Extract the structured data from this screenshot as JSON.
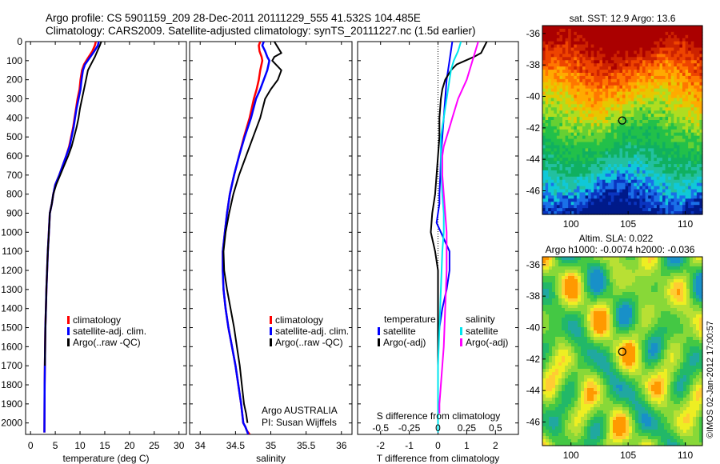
{
  "header": {
    "line1": "Argo profile: CS 5901159_209 28-Dec-2011 20111229_555 41.532S 104.485E",
    "line2": "Climatology: CARS2009. Satellite-adjusted climatology: synTS_20111227.nc (1.5d earlier)"
  },
  "footer_stamp": "©IMOS 02-Jan-2012 17:00:57",
  "colors": {
    "climatology": "#ff0000",
    "satellite": "#0000ff",
    "argo": "#000000",
    "sal_satellite": "#00e5ee",
    "sal_argo": "#ff00ff"
  },
  "chart_data": [
    {
      "id": "temperature",
      "type": "line",
      "xlabel": "temperature (deg C)",
      "xlim": [
        -1,
        31.5
      ],
      "ylim": [
        2060,
        0
      ],
      "yreverse": true,
      "xticks": [
        0,
        5,
        10,
        15,
        20,
        25,
        30
      ],
      "yticks": [
        0,
        100,
        200,
        300,
        400,
        500,
        600,
        700,
        800,
        900,
        1000,
        1100,
        1200,
        1300,
        1400,
        1500,
        1600,
        1700,
        1800,
        1900,
        2000
      ],
      "legend": [
        "climatology",
        "satellite-adj. clim.",
        "Argo(..raw -QC)"
      ],
      "series": [
        {
          "name": "climatology",
          "color": "#ff0000",
          "width": 2.5,
          "x": [
            13.2,
            13.0,
            12.5,
            11.5,
            10.8,
            10.4,
            10.1,
            9.9,
            9.5,
            9.2,
            8.9,
            8.6,
            8.2,
            7.8,
            7.2,
            6.5,
            5.8,
            5.0,
            4.6,
            4.3,
            3.9,
            3.7,
            3.5,
            3.35,
            3.2,
            3.1,
            3.0,
            2.95,
            2.9,
            2.85,
            2.8
          ],
          "y": [
            0,
            20,
            50,
            90,
            120,
            150,
            200,
            250,
            300,
            350,
            400,
            450,
            500,
            550,
            600,
            650,
            700,
            750,
            800,
            850,
            900,
            1000,
            1100,
            1200,
            1300,
            1400,
            1500,
            1600,
            1700,
            1800,
            2050
          ]
        },
        {
          "name": "satellite-adj. clim.",
          "color": "#0000ff",
          "width": 2.5,
          "x": [
            13.8,
            13.6,
            12.9,
            11.8,
            11.0,
            10.6,
            10.3,
            10.1,
            9.7,
            9.3,
            9.0,
            8.7,
            8.3,
            7.9,
            7.2,
            6.5,
            5.8,
            5.0,
            4.6,
            4.3,
            3.9,
            3.7,
            3.5,
            3.35,
            3.2,
            3.1,
            3.0,
            2.95,
            2.9,
            2.85,
            2.8
          ],
          "y": [
            0,
            20,
            50,
            90,
            120,
            150,
            200,
            250,
            300,
            350,
            400,
            450,
            500,
            550,
            600,
            650,
            700,
            750,
            800,
            850,
            900,
            1000,
            1100,
            1200,
            1300,
            1400,
            1500,
            1600,
            1700,
            1800,
            2050
          ]
        },
        {
          "name": "Argo(..raw -QC)",
          "color": "#000000",
          "width": 2,
          "x": [
            14.3,
            14.0,
            13.5,
            13.0,
            12.6,
            11.6,
            11.2,
            10.8,
            10.4,
            10.0,
            9.7,
            9.3,
            8.8,
            8.3,
            7.6,
            6.8,
            6.0,
            5.2,
            4.6,
            4.3,
            3.9,
            3.7,
            3.5,
            3.35,
            3.2,
            3.1,
            3.0,
            2.95,
            2.9
          ],
          "y": [
            0,
            20,
            50,
            80,
            100,
            150,
            200,
            250,
            300,
            350,
            400,
            450,
            500,
            550,
            600,
            650,
            700,
            750,
            800,
            850,
            900,
            1000,
            1100,
            1200,
            1300,
            1400,
            1500,
            1600,
            1700
          ]
        }
      ]
    },
    {
      "id": "salinity",
      "type": "line",
      "xlabel": "salinity",
      "xlim": [
        33.85,
        36.15
      ],
      "ylim": [
        2060,
        0
      ],
      "yreverse": true,
      "xticks": [
        34,
        34.5,
        35,
        35.5,
        36
      ],
      "xticklabels": [
        "34",
        "34.5",
        "35",
        "35.5",
        "36"
      ],
      "legend": [
        "climatology",
        "satellite-adj. clim.",
        "Argo(..raw -QC)"
      ],
      "annotations": [
        "Argo AUSTRALIA",
        "PI: Susan Wijffels"
      ],
      "series": [
        {
          "name": "climatology",
          "color": "#ff0000",
          "width": 2.5,
          "x": [
            34.85,
            34.83,
            34.84,
            34.87,
            34.88,
            34.85,
            34.83,
            34.8,
            34.76,
            34.7,
            34.62,
            34.55,
            34.48,
            34.42,
            34.38,
            34.35,
            34.32,
            34.32,
            34.33,
            34.36,
            34.4,
            34.45,
            34.5,
            34.54,
            34.58,
            34.61,
            34.64,
            34.66,
            34.68,
            34.7
          ],
          "y": [
            0,
            20,
            50,
            80,
            100,
            150,
            200,
            250,
            300,
            400,
            500,
            600,
            700,
            800,
            900,
            1000,
            1100,
            1200,
            1300,
            1400,
            1500,
            1600,
            1700,
            1800,
            1900,
            2000,
            2020,
            2040,
            2050,
            2060
          ]
        },
        {
          "name": "satellite-adj. clim.",
          "color": "#0000ff",
          "width": 2.5,
          "x": [
            34.9,
            34.88,
            34.92,
            34.95,
            34.98,
            34.95,
            34.9,
            34.85,
            34.79,
            34.72,
            34.63,
            34.55,
            34.48,
            34.42,
            34.38,
            34.35,
            34.32,
            34.32,
            34.33,
            34.36,
            34.4,
            34.45,
            34.5,
            34.54,
            34.58,
            34.61,
            34.64,
            34.66,
            34.68
          ],
          "y": [
            0,
            20,
            50,
            80,
            100,
            150,
            200,
            250,
            300,
            400,
            500,
            600,
            700,
            800,
            900,
            1000,
            1100,
            1200,
            1300,
            1400,
            1500,
            1600,
            1700,
            1800,
            1900,
            2000,
            2020,
            2040,
            2060
          ]
        },
        {
          "name": "Argo(..raw -QC)",
          "color": "#000000",
          "width": 2,
          "x": [
            35.05,
            35.1,
            35.15,
            35.05,
            35.02,
            35.15,
            35.1,
            35.0,
            34.92,
            34.85,
            34.75,
            34.65,
            34.55,
            34.47,
            34.41,
            34.36,
            34.33,
            34.34,
            34.38,
            34.43,
            34.48,
            34.52,
            34.56,
            34.59,
            34.62,
            34.65,
            34.67
          ],
          "y": [
            0,
            30,
            60,
            80,
            100,
            150,
            200,
            250,
            300,
            400,
            500,
            600,
            700,
            800,
            900,
            1000,
            1100,
            1200,
            1300,
            1400,
            1500,
            1600,
            1700,
            1800,
            1900,
            1950,
            2000
          ]
        }
      ]
    },
    {
      "id": "difference",
      "type": "line",
      "xlabel": "T difference from climatology",
      "xlabel_top": "S difference from climatology",
      "xlim": [
        -2.8,
        2.8
      ],
      "ylim": [
        2060,
        0
      ],
      "yreverse": true,
      "xticks": [
        -2,
        -1,
        0,
        1,
        2
      ],
      "xticks_top": [
        -0.5,
        -0.25,
        0,
        0.25,
        0.5
      ],
      "xticks_top_labels": [
        "-0.5",
        "-0.25",
        "0",
        "0.25",
        "0.5"
      ],
      "legend": {
        "temperature_title": "temperature",
        "salinity_title": "salinity",
        "items": [
          "satellite",
          "Argo(-adj)",
          "satellite",
          "Argo(-adj)"
        ]
      },
      "series": [
        {
          "name": "temperature satellite",
          "color": "#0000ff",
          "width": 2,
          "x": [
            0.5,
            0.4,
            0.3,
            0.25,
            0.2,
            0.15,
            0.1,
            0.08,
            0.05,
            0.05,
            0.0,
            -0.05,
            0.1,
            0.25,
            0.4,
            0.4,
            0.3,
            0.15,
            0.05,
            0.0,
            0.0,
            0.0,
            0.0,
            0.0,
            0.0
          ],
          "y": [
            0,
            100,
            200,
            300,
            400,
            500,
            600,
            700,
            800,
            850,
            900,
            950,
            1000,
            1050,
            1100,
            1200,
            1300,
            1400,
            1500,
            1600,
            1700,
            1800,
            1900,
            2000,
            2050
          ]
        },
        {
          "name": "temperature Argo(-adj)",
          "color": "#000000",
          "width": 2,
          "x": [
            1.7,
            1.6,
            1.5,
            1.25,
            0.95,
            0.65,
            0.45,
            0.25,
            0.15,
            0.1,
            0.05,
            0.05,
            0.0,
            -0.05,
            -0.1,
            -0.2,
            -0.25,
            -0.1,
            0.0,
            0.0,
            0.0,
            0.0,
            0.0,
            0.0,
            0.0
          ],
          "y": [
            0,
            30,
            60,
            80,
            100,
            120,
            150,
            200,
            250,
            300,
            400,
            500,
            600,
            700,
            800,
            900,
            1000,
            1100,
            1200,
            1400,
            1500,
            1600,
            1800,
            1900,
            1950
          ]
        },
        {
          "name": "salinity satellite",
          "color": "#00e5ee",
          "width": 2,
          "x": [
            0.8,
            0.7,
            0.55,
            0.45,
            0.4,
            0.35,
            0.3,
            0.25,
            0.2,
            0.15,
            0.1,
            0.1,
            0.12,
            0.15,
            0.2,
            0.2,
            0.15,
            0.1,
            0.05,
            0.0,
            0.0,
            0.0
          ],
          "y": [
            0,
            50,
            100,
            150,
            200,
            250,
            300,
            350,
            400,
            450,
            500,
            600,
            700,
            800,
            900,
            1000,
            1100,
            1300,
            1500,
            1700,
            1900,
            2050
          ]
        },
        {
          "name": "salinity Argo(-adj)",
          "color": "#ff00ff",
          "width": 2,
          "x": [
            1.4,
            1.3,
            1.2,
            1.1,
            1.0,
            0.85,
            0.7,
            0.6,
            0.5,
            0.4,
            0.3,
            0.2,
            0.15,
            0.15,
            0.2,
            0.25,
            0.3,
            0.3,
            0.3,
            0.25,
            0.2,
            0.15,
            0.1,
            0.05,
            0.05
          ],
          "y": [
            0,
            50,
            100,
            150,
            200,
            250,
            300,
            350,
            400,
            450,
            500,
            550,
            600,
            700,
            800,
            900,
            1000,
            1100,
            1200,
            1400,
            1600,
            1700,
            1800,
            1900,
            1950
          ]
        }
      ]
    },
    {
      "id": "sst_map",
      "type": "heatmap",
      "title": "sat. SST: 12.9  Argo: 13.6",
      "xlim": [
        97.5,
        111.5
      ],
      "ylim": [
        -47.5,
        -35.5
      ],
      "xticks": [
        100,
        105,
        110
      ],
      "yticks": [
        -36,
        -38,
        -40,
        -42,
        -44,
        -46
      ],
      "argo_position": {
        "lon": 104.485,
        "lat": -41.532
      }
    },
    {
      "id": "sla_map",
      "type": "heatmap",
      "title": "Altim. SLA: 0.022",
      "subtitle": "Argo h1000: -0.0074  h2000: -0.036",
      "xlim": [
        97.5,
        111.5
      ],
      "ylim": [
        -47.5,
        -35.5
      ],
      "xticks": [
        100,
        105,
        110
      ],
      "yticks": [
        -36,
        -38,
        -40,
        -42,
        -44,
        -46
      ],
      "argo_position": {
        "lon": 104.485,
        "lat": -41.532
      }
    }
  ]
}
